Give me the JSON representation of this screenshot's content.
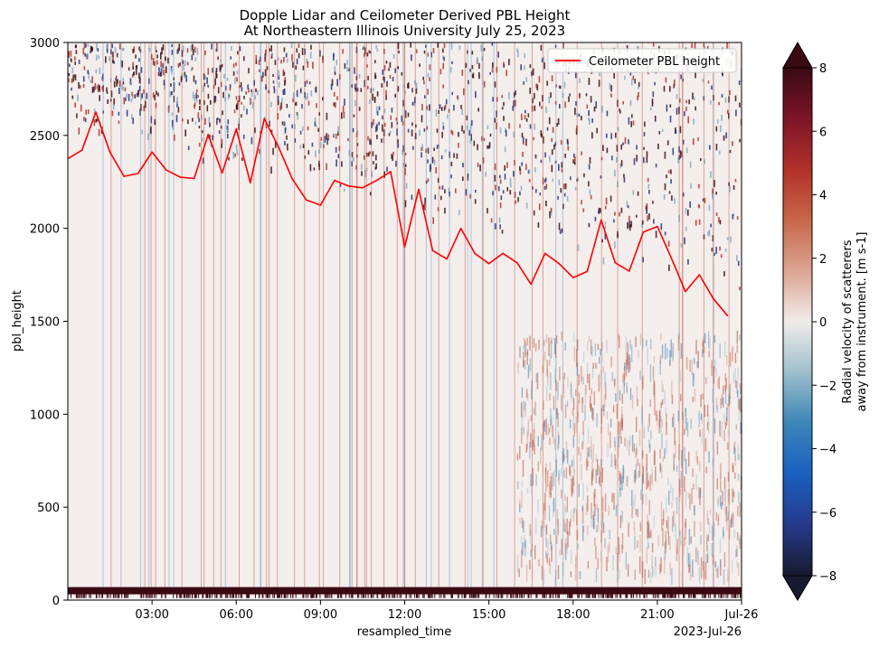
{
  "chart_data": {
    "type": "heatmap",
    "title_lines": [
      "Dopple Lidar and Ceilometer Derived PBL Height",
      "At Northeastern Illinois University July 25, 2023"
    ],
    "xlabel": "resampled_time",
    "ylabel": "pbl_height",
    "x_range_hours": [
      0,
      24
    ],
    "xticks": [
      {
        "hour": 3,
        "label": "03:00"
      },
      {
        "hour": 6,
        "label": "06:00"
      },
      {
        "hour": 9,
        "label": "09:00"
      },
      {
        "hour": 12,
        "label": "12:00"
      },
      {
        "hour": 15,
        "label": "15:00"
      },
      {
        "hour": 18,
        "label": "18:00"
      },
      {
        "hour": 21,
        "label": "21:00"
      },
      {
        "hour": 24,
        "label": "Jul-26"
      }
    ],
    "x_offset_label": "2023-Jul-26",
    "ylim": [
      0,
      3000
    ],
    "yticks": [
      0,
      500,
      1000,
      1500,
      2000,
      2500,
      3000
    ],
    "legend": {
      "label": "Ceilometer PBL height",
      "color": "#ff0000",
      "position": "top-right"
    },
    "colorbar": {
      "label_lines": [
        "Radial velocity of scatterers",
        "away from instrument. [m s-1]"
      ],
      "min": -8,
      "max": 8,
      "ticks": [
        -8,
        -6,
        -4,
        -2,
        0,
        2,
        4,
        6,
        8
      ],
      "colormap": "balance"
    },
    "series": [
      {
        "name": "Ceilometer PBL height",
        "color": "#ff0000",
        "x_hours": [
          0.0,
          0.5,
          1.0,
          1.5,
          2.0,
          2.5,
          3.0,
          3.5,
          4.0,
          4.5,
          5.0,
          5.5,
          6.0,
          6.5,
          7.0,
          7.5,
          8.0,
          8.5,
          9.0,
          9.5,
          10.0,
          10.5,
          11.0,
          11.5,
          12.0,
          12.5,
          13.0,
          13.5,
          14.0,
          14.5,
          15.0,
          15.5,
          16.0,
          16.5,
          17.0,
          17.5,
          18.0,
          18.5,
          19.0,
          19.5,
          20.0,
          20.5,
          21.0,
          21.5,
          22.0,
          22.5,
          23.0,
          23.5
        ],
        "values": [
          2375,
          2420,
          2625,
          2410,
          2280,
          2295,
          2410,
          2315,
          2275,
          2268,
          2505,
          2298,
          2535,
          2245,
          2590,
          2440,
          2265,
          2152,
          2125,
          2258,
          2228,
          2218,
          2258,
          2305,
          1900,
          2210,
          1880,
          1835,
          2000,
          1865,
          1810,
          1865,
          1815,
          1700,
          1865,
          1810,
          1735,
          1768,
          2045,
          1815,
          1770,
          1980,
          2010,
          1840,
          1660,
          1750,
          1620,
          1530
        ]
      }
    ]
  }
}
